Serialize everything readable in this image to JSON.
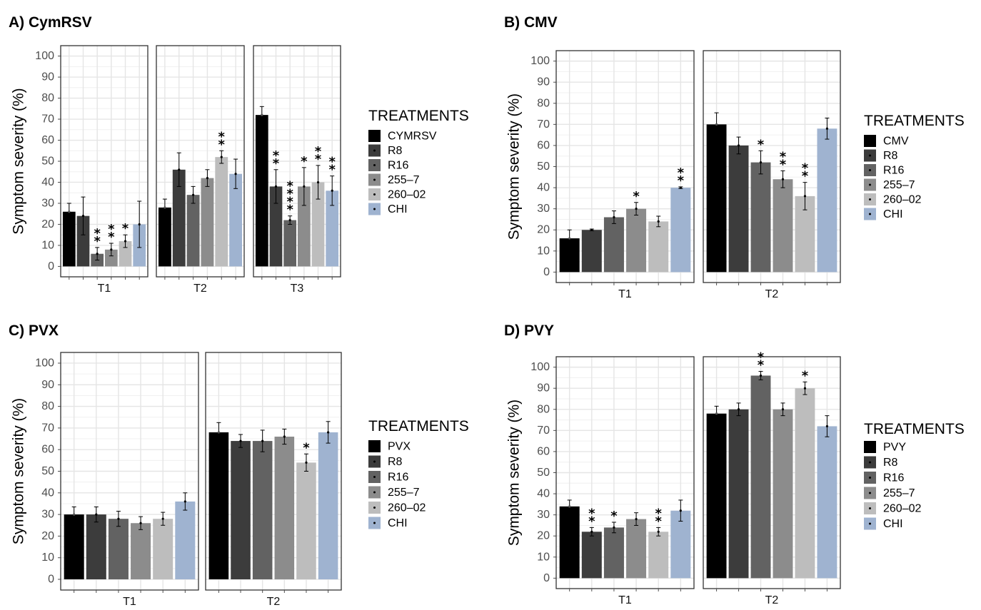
{
  "legend_title": "TREATMENTS",
  "stat_axis_label": "Symptom severity (%)",
  "colors": {
    "treatments": [
      "#000000",
      "#3c3c3c",
      "#626262",
      "#8c8c8c",
      "#bdbdbd",
      "#9fb3d0"
    ],
    "grid": "#e5e5e5",
    "panel_border": "#333333",
    "axis_text": "#4d4d4d"
  },
  "chart_data": [
    {
      "id": "A",
      "title": "A) CymRSV",
      "type": "bar",
      "ylabel": "Symptom severity (%)",
      "ylim": [
        0,
        100
      ],
      "yticks": [
        0,
        10,
        20,
        30,
        40,
        50,
        60,
        70,
        80,
        90,
        100
      ],
      "legend_title": "TREATMENTS",
      "legend": [
        "CYMRSV",
        "R8",
        "R16",
        "255–7",
        "260–02",
        "CHI"
      ],
      "panels": [
        {
          "label": "T1",
          "values": [
            26,
            24,
            6,
            8,
            12,
            20
          ],
          "errors": [
            4,
            9,
            3,
            3,
            3,
            11
          ],
          "stars": [
            "",
            "",
            "**",
            "**",
            "*",
            ""
          ]
        },
        {
          "label": "T2",
          "values": [
            28,
            46,
            34,
            42,
            52,
            44
          ],
          "errors": [
            4,
            8,
            4,
            4,
            3,
            7
          ],
          "stars": [
            "",
            "",
            "",
            "",
            "**",
            ""
          ]
        },
        {
          "label": "T3",
          "values": [
            72,
            38,
            22,
            38,
            40,
            36
          ],
          "errors": [
            4,
            8,
            2,
            9,
            8,
            7
          ],
          "stars": [
            "",
            "**",
            "****",
            "*",
            "**",
            "**"
          ]
        }
      ]
    },
    {
      "id": "B",
      "title": "B) CMV",
      "type": "bar",
      "ylabel": "Symptom severity (%)",
      "ylim": [
        0,
        100
      ],
      "yticks": [
        0,
        10,
        20,
        30,
        40,
        50,
        60,
        70,
        80,
        90,
        100
      ],
      "legend_title": "TREATMENTS",
      "legend": [
        "CMV",
        "R8",
        "R16",
        "255–7",
        "260–02",
        "CHI"
      ],
      "panels": [
        {
          "label": "T1",
          "values": [
            16,
            20,
            26,
            30,
            24,
            40
          ],
          "errors": [
            4,
            0.4,
            3,
            3,
            2.5,
            0.4
          ],
          "stars": [
            "",
            "",
            "",
            "*",
            "",
            "**"
          ]
        },
        {
          "label": "T2",
          "values": [
            70,
            60,
            52,
            44,
            36,
            68
          ],
          "errors": [
            5.5,
            4,
            5.5,
            4,
            6.5,
            5
          ],
          "stars": [
            "",
            "",
            "*",
            "**",
            "**",
            ""
          ]
        }
      ]
    },
    {
      "id": "C",
      "title": "C) PVX",
      "type": "bar",
      "ylabel": "Symptom severity (%)",
      "ylim": [
        0,
        100
      ],
      "yticks": [
        0,
        10,
        20,
        30,
        40,
        50,
        60,
        70,
        80,
        90,
        100
      ],
      "legend_title": "TREATMENTS",
      "legend": [
        "PVX",
        "R8",
        "R16",
        "255–7",
        "260–02",
        "CHI"
      ],
      "panels": [
        {
          "label": "T1",
          "values": [
            30,
            30,
            28,
            26,
            28,
            36
          ],
          "errors": [
            3.5,
            3.5,
            3.5,
            3,
            3,
            4
          ],
          "stars": [
            "",
            "",
            "",
            "",
            "",
            ""
          ]
        },
        {
          "label": "T2",
          "values": [
            68,
            64,
            64,
            66,
            54,
            68
          ],
          "errors": [
            4.5,
            3,
            5,
            3.5,
            4,
            5
          ],
          "stars": [
            "",
            "",
            "",
            "",
            "*",
            ""
          ]
        }
      ]
    },
    {
      "id": "D",
      "title": "D) PVY",
      "type": "bar",
      "ylabel": "Symptom severity (%)",
      "ylim": [
        0,
        100
      ],
      "yticks": [
        0,
        10,
        20,
        30,
        40,
        50,
        60,
        70,
        80,
        90,
        100
      ],
      "legend_title": "TREATMENTS",
      "legend": [
        "PVY",
        "R8",
        "R16",
        "255–7",
        "260–02",
        "CHI"
      ],
      "panels": [
        {
          "label": "T1",
          "values": [
            34,
            22,
            24,
            28,
            22,
            32
          ],
          "errors": [
            3,
            2,
            2.5,
            3,
            2,
            5
          ],
          "stars": [
            "",
            "**",
            "*",
            "",
            "**",
            ""
          ]
        },
        {
          "label": "T2",
          "values": [
            78,
            80,
            96,
            80,
            90,
            72
          ],
          "errors": [
            3.5,
            3,
            2,
            3,
            3,
            5
          ],
          "stars": [
            "",
            "",
            "**",
            "",
            "*",
            ""
          ]
        }
      ]
    }
  ]
}
